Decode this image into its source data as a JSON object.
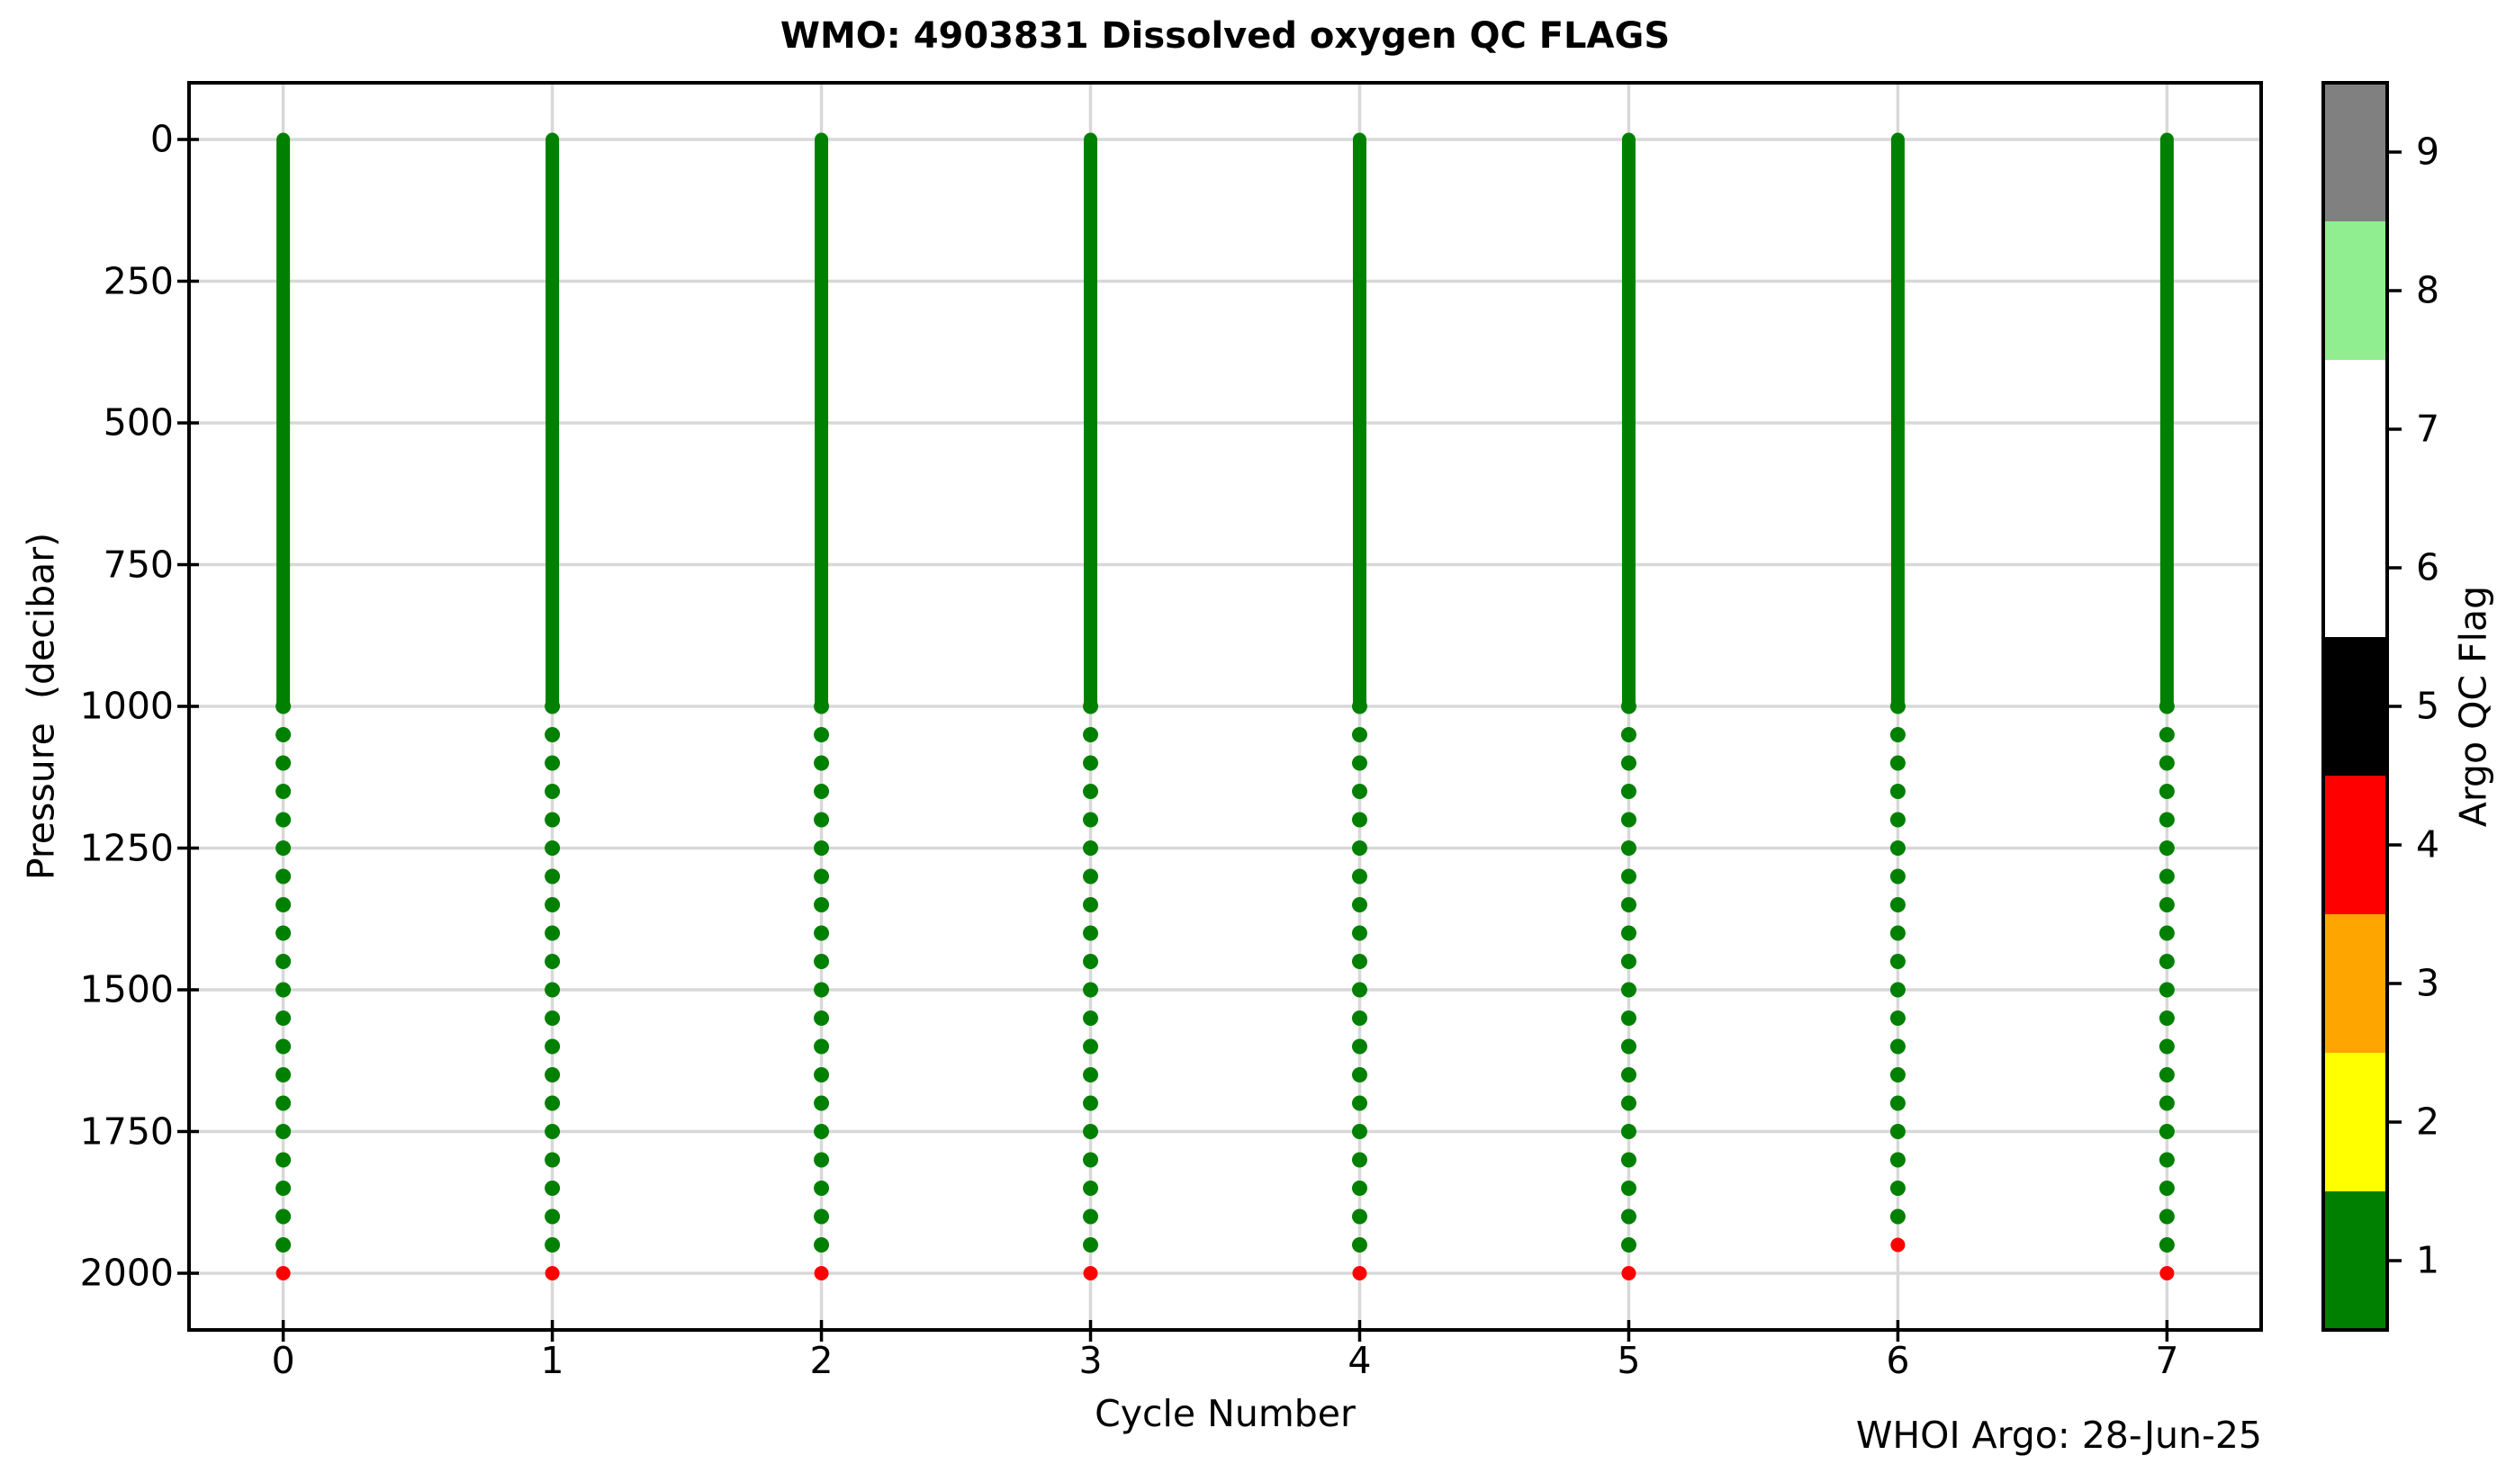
{
  "chart_data": {
    "type": "scatter",
    "title": "WMO: 4903831 Dissolved oxygen QC FLAGS",
    "xlabel": "Cycle Number",
    "ylabel": "Pressure  (decibar)",
    "annotation": "WHOI Argo: 28-Jun-25",
    "x_ticks": [
      0,
      1,
      2,
      3,
      4,
      5,
      6,
      7
    ],
    "y_ticks": [
      0,
      250,
      500,
      750,
      1000,
      1250,
      1500,
      1750,
      2000
    ],
    "x_range": [
      -0.35,
      7.35
    ],
    "y_range": [
      -100,
      2100
    ],
    "y_axis_inverted": true,
    "grid": true,
    "grid_color": "#d8d8d8",
    "spine_color": "#000000",
    "marker_colors": {
      "flag1": "#008000",
      "flag4": "#ff0000"
    },
    "profiles": [
      {
        "cycle": 0,
        "continuous_flag1_pressure_range": [
          0,
          1000
        ],
        "flag1_dots": {
          "start": 1050,
          "end": 1950,
          "step": 50
        },
        "flag4_dot_pressure": 2000
      },
      {
        "cycle": 1,
        "continuous_flag1_pressure_range": [
          0,
          1000
        ],
        "flag1_dots": {
          "start": 1050,
          "end": 1950,
          "step": 50
        },
        "flag4_dot_pressure": 2000
      },
      {
        "cycle": 2,
        "continuous_flag1_pressure_range": [
          0,
          1000
        ],
        "flag1_dots": {
          "start": 1050,
          "end": 1950,
          "step": 50
        },
        "flag4_dot_pressure": 2000
      },
      {
        "cycle": 3,
        "continuous_flag1_pressure_range": [
          0,
          1000
        ],
        "flag1_dots": {
          "start": 1050,
          "end": 1950,
          "step": 50
        },
        "flag4_dot_pressure": 2000
      },
      {
        "cycle": 4,
        "continuous_flag1_pressure_range": [
          0,
          1000
        ],
        "flag1_dots": {
          "start": 1050,
          "end": 1950,
          "step": 50
        },
        "flag4_dot_pressure": 2000
      },
      {
        "cycle": 5,
        "continuous_flag1_pressure_range": [
          0,
          1000
        ],
        "flag1_dots": {
          "start": 1050,
          "end": 1950,
          "step": 50
        },
        "flag4_dot_pressure": 2000
      },
      {
        "cycle": 6,
        "continuous_flag1_pressure_range": [
          0,
          1000
        ],
        "flag1_dots": {
          "start": 1050,
          "end": 1900,
          "step": 50
        },
        "flag4_dot_pressure": 1950
      },
      {
        "cycle": 7,
        "continuous_flag1_pressure_range": [
          0,
          1000
        ],
        "flag1_dots": {
          "start": 1050,
          "end": 1950,
          "step": 50
        },
        "flag4_dot_pressure": 2000
      }
    ],
    "colorbar": {
      "label": "Argo QC Flag",
      "ticks": [
        1,
        2,
        3,
        4,
        5,
        6,
        7,
        8,
        9
      ],
      "range": [
        0.5,
        9.5
      ],
      "segments": [
        {
          "flags": [
            1
          ],
          "color": "#008000"
        },
        {
          "flags": [
            2
          ],
          "color": "#ffff00"
        },
        {
          "flags": [
            3
          ],
          "color": "#ffa500"
        },
        {
          "flags": [
            4
          ],
          "color": "#ff0000"
        },
        {
          "flags": [
            5
          ],
          "color": "#000000"
        },
        {
          "flags": [
            6,
            7
          ],
          "color": "#ffffff"
        },
        {
          "flags": [
            8
          ],
          "color": "#90ee90"
        },
        {
          "flags": [
            9
          ],
          "color": "#808080"
        }
      ]
    }
  }
}
